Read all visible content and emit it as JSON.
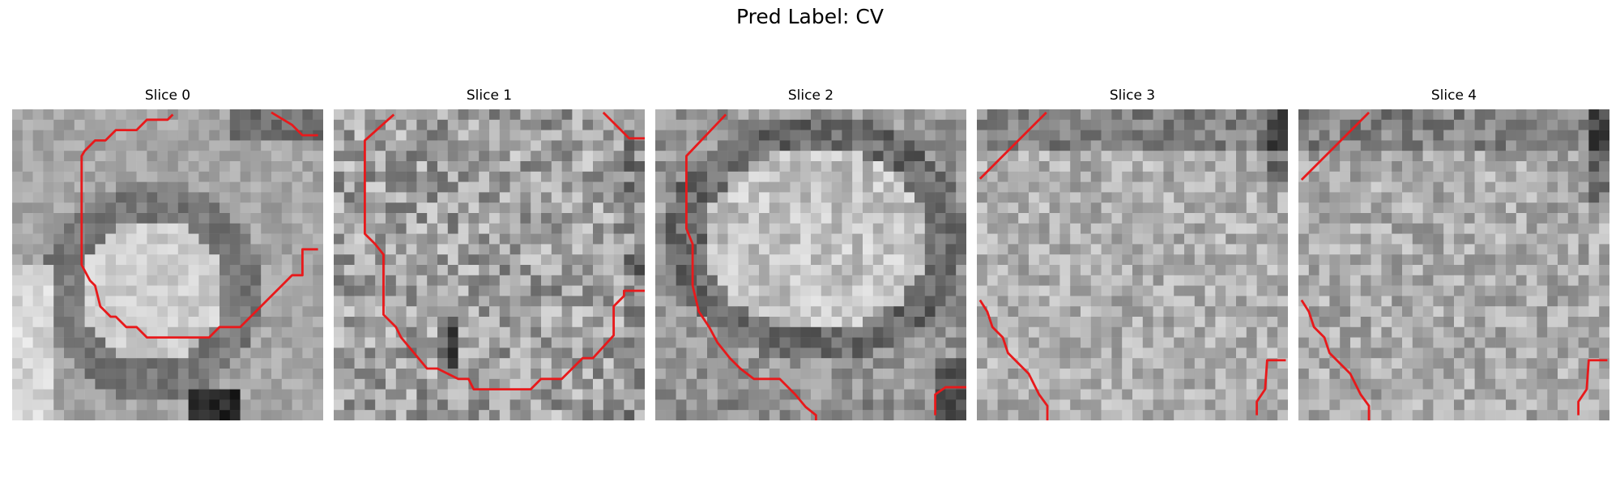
{
  "figure": {
    "title": "Pred Label: CV",
    "panels": [
      {
        "title": "Slice 0"
      },
      {
        "title": "Slice 1"
      },
      {
        "title": "Slice 2"
      },
      {
        "title": "Slice 3"
      },
      {
        "title": "Slice 4"
      }
    ],
    "contour_color": "#e8191b"
  }
}
